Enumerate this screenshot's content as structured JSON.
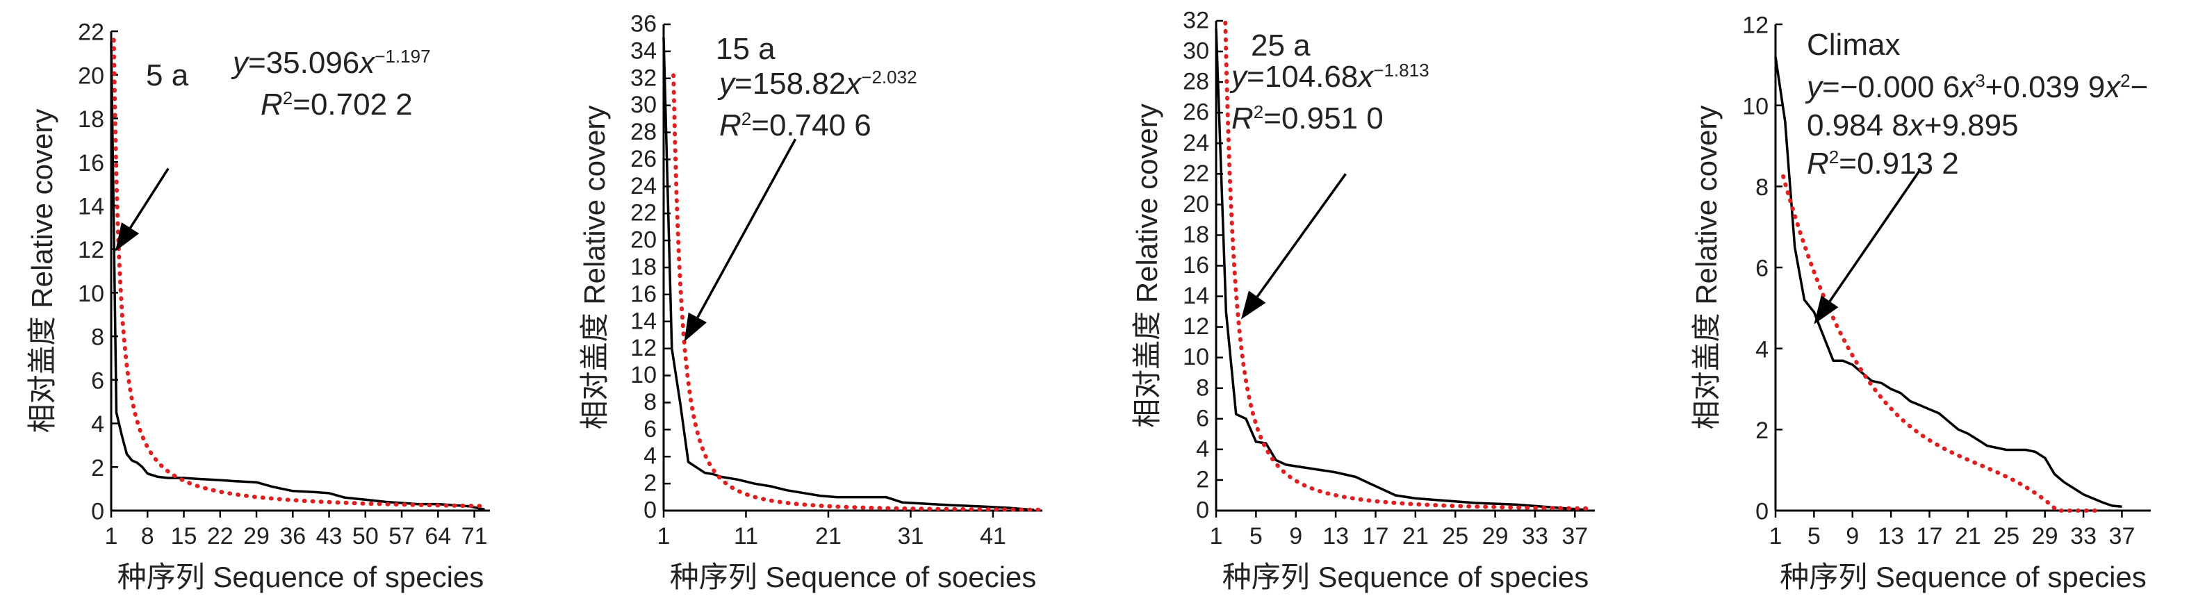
{
  "chart_data": [
    {
      "type": "line",
      "panel_label": "5 a",
      "xlabel": "种序列 Sequence of species",
      "ylabel": "相对盖度 Relative covery",
      "xlim": [
        1,
        74
      ],
      "ylim": [
        0,
        22
      ],
      "x_ticks": [
        1,
        8,
        15,
        22,
        29,
        36,
        43,
        50,
        57,
        64,
        71
      ],
      "y_ticks": [
        0,
        2,
        4,
        6,
        8,
        10,
        12,
        14,
        16,
        18,
        20,
        22
      ],
      "equation": {
        "y": "y",
        "body": "=35.096",
        "x": "x",
        "exp": "−1.197"
      },
      "r2": {
        "r": "R",
        "sup": "2",
        "value": "=0.702 2"
      },
      "arrow": {
        "from": [
          12,
          15.7
        ],
        "to": [
          1.8,
          11.9
        ]
      },
      "fit": {
        "kind": "power",
        "a": 35.096,
        "b": -1.197
      },
      "series": [
        {
          "role": "observed",
          "color": "#000000",
          "x": [
            1,
            2,
            3,
            4,
            5,
            6,
            7,
            8,
            10,
            12,
            15,
            18,
            22,
            25,
            29,
            32,
            36,
            40,
            43,
            46,
            50,
            54,
            57,
            60,
            64,
            67,
            70,
            72,
            73
          ],
          "y": [
            21.5,
            4.5,
            3.5,
            2.6,
            2.3,
            2.2,
            2.0,
            1.7,
            1.55,
            1.5,
            1.5,
            1.45,
            1.4,
            1.35,
            1.3,
            1.1,
            0.9,
            0.85,
            0.8,
            0.6,
            0.5,
            0.4,
            0.35,
            0.3,
            0.3,
            0.25,
            0.2,
            0.1,
            0.05
          ]
        },
        {
          "role": "fitted",
          "color": "#e02020",
          "style": "dotted"
        }
      ]
    },
    {
      "type": "line",
      "panel_label": "15 a",
      "xlabel": "种序列 Sequence of soecies",
      "ylabel": "相对盖度 Relative covery",
      "xlim": [
        1,
        47
      ],
      "ylim": [
        0,
        36
      ],
      "x_ticks": [
        1,
        11,
        21,
        31,
        41
      ],
      "y_ticks": [
        0,
        2,
        4,
        6,
        8,
        10,
        12,
        14,
        16,
        18,
        20,
        22,
        24,
        26,
        28,
        30,
        32,
        34,
        36
      ],
      "equation": {
        "y": "y",
        "body": "=158.82",
        "x": "x",
        "exp": "−2.032"
      },
      "r2": {
        "r": "R",
        "sup": "2",
        "value": "=0.740 6"
      },
      "arrow": {
        "from": [
          17,
          27.5
        ],
        "to": [
          3.5,
          12.5
        ]
      },
      "fit": {
        "kind": "power",
        "a": 158.82,
        "b": -2.032
      },
      "series": [
        {
          "role": "observed",
          "color": "#000000",
          "x": [
            1,
            2,
            3,
            4,
            5,
            6,
            7,
            8,
            10,
            12,
            14,
            16,
            18,
            20,
            22,
            25,
            28,
            30,
            33,
            36,
            40,
            43,
            45,
            46
          ],
          "y": [
            35.0,
            12.0,
            8.0,
            3.6,
            3.2,
            2.8,
            2.7,
            2.5,
            2.3,
            2.0,
            1.8,
            1.5,
            1.3,
            1.1,
            1.0,
            1.0,
            1.0,
            0.6,
            0.5,
            0.4,
            0.3,
            0.2,
            0.1,
            0.05
          ]
        },
        {
          "role": "fitted",
          "color": "#e02020",
          "style": "dotted"
        }
      ]
    },
    {
      "type": "line",
      "panel_label": "25 a",
      "xlabel": "种序列 Sequence of species",
      "ylabel": "相对盖度 Relative covery",
      "xlim": [
        1,
        39
      ],
      "ylim": [
        0,
        32
      ],
      "x_ticks": [
        1,
        5,
        9,
        13,
        17,
        21,
        25,
        29,
        33,
        37
      ],
      "y_ticks": [
        0,
        2,
        4,
        6,
        8,
        10,
        12,
        14,
        16,
        18,
        20,
        22,
        24,
        26,
        28,
        30,
        32
      ],
      "equation": {
        "y": "y",
        "body": "=104.68",
        "x": "x",
        "exp": "−1.813"
      },
      "r2": {
        "r": "R",
        "sup": "2",
        "value": "=0.951 0"
      },
      "arrow": {
        "from": [
          14,
          22
        ],
        "to": [
          3.5,
          12.5
        ]
      },
      "fit": {
        "kind": "power",
        "a": 104.68,
        "b": -1.813
      },
      "series": [
        {
          "role": "observed",
          "color": "#000000",
          "x": [
            1,
            2,
            3,
            4,
            5,
            6,
            7,
            8,
            9,
            11,
            13,
            15,
            17,
            19,
            21,
            23,
            25,
            27,
            29,
            31,
            33,
            35,
            37,
            38
          ],
          "y": [
            31.5,
            13.0,
            6.3,
            6.0,
            4.5,
            4.4,
            3.3,
            3.0,
            2.9,
            2.7,
            2.5,
            2.2,
            1.6,
            1.0,
            0.8,
            0.7,
            0.6,
            0.5,
            0.45,
            0.4,
            0.3,
            0.2,
            0.1,
            0.05
          ]
        },
        {
          "role": "fitted",
          "color": "#e02020",
          "style": "dotted"
        }
      ]
    },
    {
      "type": "line",
      "panel_label": "Climax",
      "xlabel": "种序列 Sequence of species",
      "ylabel": "相对盖度 Relative covery",
      "xlim": [
        1,
        40
      ],
      "ylim": [
        0,
        12
      ],
      "x_ticks": [
        1,
        5,
        9,
        13,
        17,
        21,
        25,
        29,
        33,
        37
      ],
      "y_ticks": [
        0,
        2,
        4,
        6,
        8,
        10,
        12
      ],
      "equation_lines": [
        {
          "y": "y",
          "a": "=−0.000 6",
          "x1": "x",
          "e1": "3",
          "b": "+0.039 9",
          "x2": "x",
          "e2": "2",
          "c": "−"
        },
        {
          "text": "0.984 8",
          "x": "x",
          "rest": "+9.895"
        }
      ],
      "r2": {
        "r": "R",
        "sup": "2",
        "value": "=0.913 2"
      },
      "arrow": {
        "from": [
          16,
          8.4
        ],
        "to": [
          5,
          4.6
        ]
      },
      "fit": {
        "kind": "cubic",
        "a": -0.0006,
        "b": 0.0399,
        "c": -0.9848,
        "d": 9.895
      },
      "series": [
        {
          "role": "observed",
          "color": "#000000",
          "x": [
            1,
            2,
            3,
            4,
            5,
            6,
            7,
            8,
            9,
            10,
            11,
            12,
            13,
            14,
            15,
            16,
            17,
            18,
            19,
            20,
            21,
            22,
            23,
            24,
            25,
            26,
            27,
            28,
            29,
            30,
            31,
            32,
            33,
            34,
            35,
            36,
            37
          ],
          "y": [
            11.2,
            9.6,
            6.5,
            5.2,
            4.9,
            4.3,
            3.7,
            3.7,
            3.6,
            3.4,
            3.2,
            3.15,
            3.0,
            2.9,
            2.7,
            2.6,
            2.5,
            2.4,
            2.2,
            2.0,
            1.9,
            1.75,
            1.6,
            1.55,
            1.5,
            1.5,
            1.5,
            1.45,
            1.3,
            0.9,
            0.7,
            0.55,
            0.4,
            0.3,
            0.2,
            0.12,
            0.1
          ]
        },
        {
          "role": "fitted",
          "color": "#e02020",
          "style": "dotted"
        }
      ]
    }
  ]
}
